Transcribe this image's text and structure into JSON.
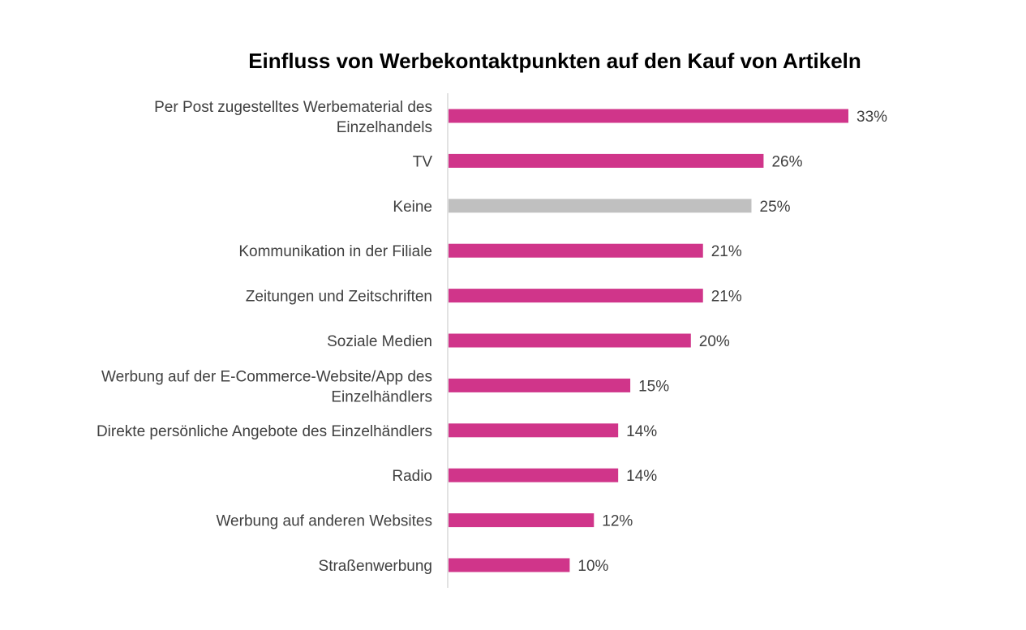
{
  "chart_data": {
    "type": "bar",
    "orientation": "horizontal",
    "title": "Einfluss von Werbekontaktpunkten auf den Kauf von Artikeln",
    "categories": [
      "Per Post zugestelltes Werbematerial des Einzelhandels",
      "TV",
      "Keine",
      "Kommunikation in der Filiale",
      "Zeitungen und Zeitschriften",
      "Soziale Medien",
      "Werbung auf der E-Commerce-Website/App des Einzelhändlers",
      "Direkte persönliche Angebote des Einzelhändlers",
      "Radio",
      "Werbung auf anderen Websites",
      "Straßenwerbung"
    ],
    "category_lines": [
      [
        "Per Post zugestelltes Werbematerial des",
        "Einzelhandels"
      ],
      [
        "TV"
      ],
      [
        "Keine"
      ],
      [
        "Kommunikation in der Filiale"
      ],
      [
        "Zeitungen und Zeitschriften"
      ],
      [
        "Soziale Medien"
      ],
      [
        "Werbung auf der E-Commerce-Website/App des",
        "Einzelhändlers"
      ],
      [
        "Direkte persönliche Angebote des Einzelhändlers"
      ],
      [
        "Radio"
      ],
      [
        "Werbung auf anderen Websites"
      ],
      [
        "Straßenwerbung"
      ]
    ],
    "values": [
      33,
      26,
      25,
      21,
      21,
      20,
      15,
      14,
      14,
      12,
      10
    ],
    "data_labels": [
      "33%",
      "26%",
      "25%",
      "21%",
      "21%",
      "20%",
      "15%",
      "14%",
      "14%",
      "12%",
      "10%"
    ],
    "unit": "%",
    "xlim": [
      0,
      35
    ],
    "grid": false,
    "legend": "none",
    "colors": {
      "default": "#d0358a",
      "highlight_none": "#c0c0c0",
      "axis": "#d9d9d9"
    },
    "gray_categories": [
      "Keine"
    ]
  }
}
